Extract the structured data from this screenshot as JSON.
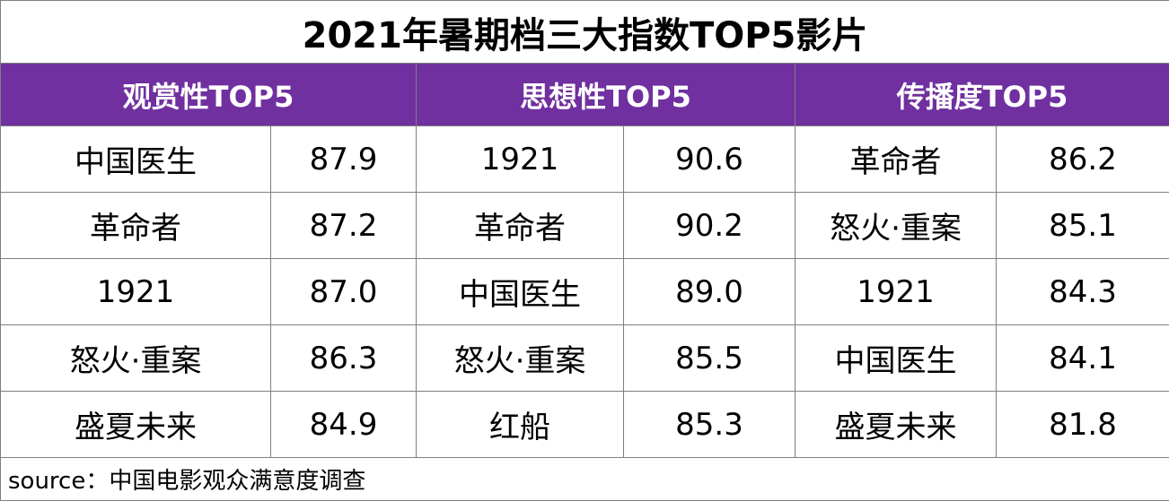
{
  "title": "2021年暑期档三大指数TOP5影片",
  "groups": [
    {
      "header": "观赏性TOP5",
      "rows": [
        {
          "film": "中国医生",
          "score": "87.9"
        },
        {
          "film": "革命者",
          "score": "87.2"
        },
        {
          "film": "1921",
          "score": "87.0"
        },
        {
          "film": "怒火·重案",
          "score": "86.3"
        },
        {
          "film": "盛夏未来",
          "score": "84.9"
        }
      ]
    },
    {
      "header": "思想性TOP5",
      "rows": [
        {
          "film": "1921",
          "score": "90.6"
        },
        {
          "film": "革命者",
          "score": "90.2"
        },
        {
          "film": "中国医生",
          "score": "89.0"
        },
        {
          "film": "怒火·重案",
          "score": "85.5"
        },
        {
          "film": "红船",
          "score": "85.3"
        }
      ]
    },
    {
      "header": "传播度TOP5",
      "rows": [
        {
          "film": "革命者",
          "score": "86.2"
        },
        {
          "film": "怒火·重案",
          "score": "85.1"
        },
        {
          "film": "1921",
          "score": "84.3"
        },
        {
          "film": "中国医生",
          "score": "84.1"
        },
        {
          "film": "盛夏未来",
          "score": "81.8"
        }
      ]
    }
  ],
  "source": "source：中国电影观众满意度调查",
  "colors": {
    "header_bg": "#7030a0",
    "header_text": "#ffffff",
    "border": "#7f7f7f"
  }
}
